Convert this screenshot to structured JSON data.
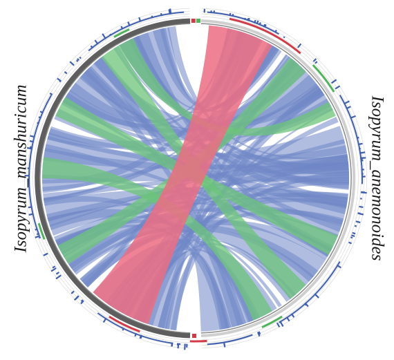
{
  "genomes": {
    "left": "Isopyrum_manshuricum",
    "right": "Isopyrum_anemonoides"
  },
  "colors": {
    "link_blue": "#6f86c6",
    "link_red": "#ec6d82",
    "link_green": "#6cc47a",
    "ideogram_dark": "#5e5e5e",
    "gene_track_blue": "#3f5fae",
    "highlight_red": "#d33a48",
    "highlight_green": "#4fb45a"
  }
}
